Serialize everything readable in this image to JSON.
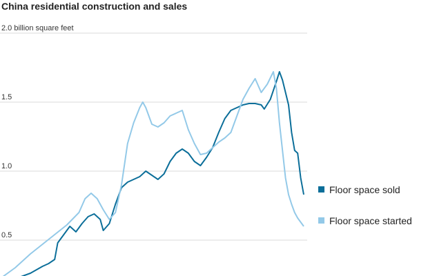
{
  "chart_data": {
    "type": "line",
    "title": "China residential construction and sales",
    "ylabel": "billion square feet",
    "y_unit_prefix": "2.0",
    "ylim": [
      0.24,
      2.0
    ],
    "y_ticks": [
      {
        "value": 2.0,
        "label": "2.0 billion square feet"
      },
      {
        "value": 1.5,
        "label": "1.5"
      },
      {
        "value": 1.0,
        "label": "1.0"
      },
      {
        "value": 0.5,
        "label": "0.5"
      }
    ],
    "grid": true,
    "legend_position": "right",
    "x_index_range": [
      0,
      100
    ],
    "series": [
      {
        "name": "Floor space sold",
        "color": "#0b6e99",
        "points": [
          [
            0,
            0.19
          ],
          [
            5,
            0.22
          ],
          [
            10,
            0.26
          ],
          [
            14,
            0.31
          ],
          [
            16,
            0.33
          ],
          [
            18,
            0.36
          ],
          [
            19,
            0.48
          ],
          [
            21,
            0.54
          ],
          [
            23,
            0.6
          ],
          [
            25,
            0.56
          ],
          [
            27,
            0.62
          ],
          [
            29,
            0.67
          ],
          [
            31,
            0.69
          ],
          [
            33,
            0.65
          ],
          [
            34,
            0.57
          ],
          [
            36,
            0.62
          ],
          [
            38,
            0.76
          ],
          [
            40,
            0.88
          ],
          [
            42,
            0.92
          ],
          [
            44,
            0.94
          ],
          [
            46,
            0.96
          ],
          [
            48,
            1.0
          ],
          [
            50,
            0.97
          ],
          [
            52,
            0.94
          ],
          [
            54,
            0.98
          ],
          [
            56,
            1.07
          ],
          [
            58,
            1.13
          ],
          [
            60,
            1.16
          ],
          [
            62,
            1.13
          ],
          [
            64,
            1.07
          ],
          [
            66,
            1.04
          ],
          [
            68,
            1.1
          ],
          [
            70,
            1.17
          ],
          [
            72,
            1.28
          ],
          [
            74,
            1.38
          ],
          [
            76,
            1.44
          ],
          [
            78,
            1.46
          ],
          [
            80,
            1.48
          ],
          [
            82,
            1.49
          ],
          [
            84,
            1.49
          ],
          [
            86,
            1.48
          ],
          [
            87,
            1.45
          ],
          [
            89,
            1.52
          ],
          [
            91,
            1.65
          ],
          [
            92,
            1.72
          ],
          [
            93,
            1.66
          ],
          [
            95,
            1.48
          ],
          [
            96,
            1.28
          ],
          [
            97,
            1.15
          ],
          [
            98,
            1.13
          ],
          [
            99,
            0.95
          ],
          [
            100,
            0.83
          ]
        ]
      },
      {
        "name": "Floor space started",
        "color": "#93c9e8",
        "points": [
          [
            0,
            0.22
          ],
          [
            5,
            0.3
          ],
          [
            10,
            0.4
          ],
          [
            14,
            0.47
          ],
          [
            18,
            0.54
          ],
          [
            22,
            0.61
          ],
          [
            26,
            0.7
          ],
          [
            28,
            0.8
          ],
          [
            30,
            0.84
          ],
          [
            32,
            0.8
          ],
          [
            34,
            0.72
          ],
          [
            36,
            0.65
          ],
          [
            38,
            0.7
          ],
          [
            40,
            0.9
          ],
          [
            42,
            1.2
          ],
          [
            44,
            1.35
          ],
          [
            46,
            1.46
          ],
          [
            47,
            1.5
          ],
          [
            48,
            1.46
          ],
          [
            50,
            1.34
          ],
          [
            52,
            1.32
          ],
          [
            54,
            1.35
          ],
          [
            56,
            1.4
          ],
          [
            58,
            1.42
          ],
          [
            60,
            1.44
          ],
          [
            62,
            1.3
          ],
          [
            64,
            1.2
          ],
          [
            66,
            1.12
          ],
          [
            68,
            1.13
          ],
          [
            70,
            1.17
          ],
          [
            72,
            1.21
          ],
          [
            74,
            1.24
          ],
          [
            76,
            1.28
          ],
          [
            78,
            1.4
          ],
          [
            80,
            1.52
          ],
          [
            82,
            1.6
          ],
          [
            84,
            1.67
          ],
          [
            85,
            1.62
          ],
          [
            86,
            1.57
          ],
          [
            88,
            1.63
          ],
          [
            90,
            1.72
          ],
          [
            91,
            1.6
          ],
          [
            92,
            1.35
          ],
          [
            93,
            1.15
          ],
          [
            94,
            0.95
          ],
          [
            95,
            0.83
          ],
          [
            96,
            0.76
          ],
          [
            97,
            0.7
          ],
          [
            98,
            0.66
          ],
          [
            99,
            0.63
          ],
          [
            100,
            0.6
          ]
        ]
      }
    ]
  }
}
